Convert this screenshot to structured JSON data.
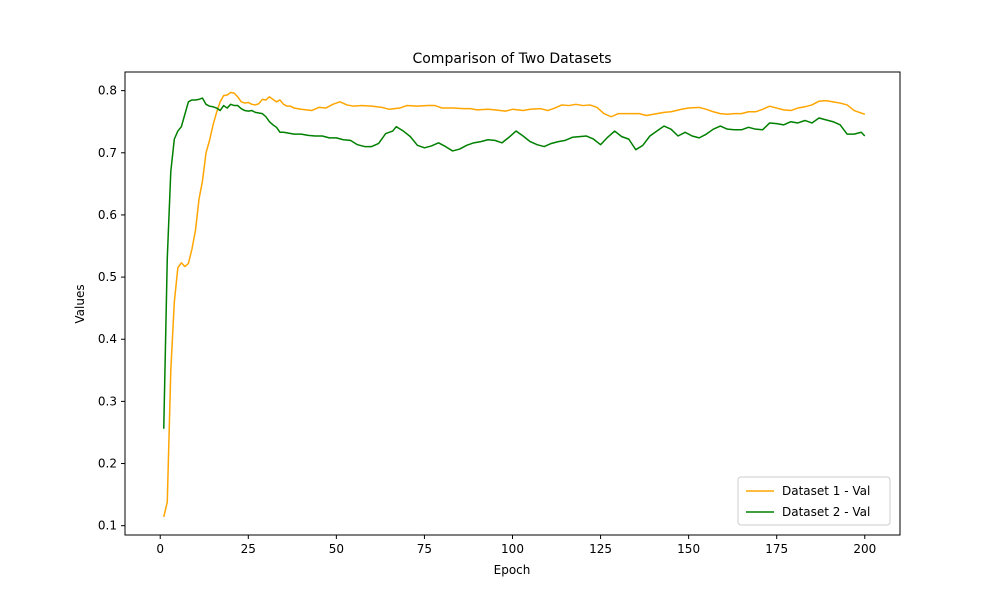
{
  "chart_data": {
    "type": "line",
    "title": "Comparison of Two Datasets",
    "xlabel": "Epoch",
    "ylabel": "Values",
    "xlim": [
      -10,
      210
    ],
    "ylim": [
      0.085,
      0.83
    ],
    "xticks": [
      0,
      25,
      50,
      75,
      100,
      125,
      150,
      175,
      200
    ],
    "yticks": [
      0.1,
      0.2,
      0.3,
      0.4,
      0.5,
      0.6,
      0.7,
      0.8
    ],
    "grid": false,
    "legend_position": "bottom-right",
    "series": [
      {
        "name": "Dataset 1 - Val",
        "color": "#ffa500",
        "points": [
          [
            1,
            0.114
          ],
          [
            2,
            0.138
          ],
          [
            3,
            0.35
          ],
          [
            4,
            0.46
          ],
          [
            5,
            0.515
          ],
          [
            6,
            0.523
          ],
          [
            7,
            0.517
          ],
          [
            8,
            0.522
          ],
          [
            9,
            0.545
          ],
          [
            10,
            0.575
          ],
          [
            11,
            0.625
          ],
          [
            12,
            0.655
          ],
          [
            13,
            0.7
          ],
          [
            14,
            0.72
          ],
          [
            15,
            0.745
          ],
          [
            16,
            0.765
          ],
          [
            17,
            0.782
          ],
          [
            18,
            0.792
          ],
          [
            19,
            0.793
          ],
          [
            20,
            0.797
          ],
          [
            21,
            0.796
          ],
          [
            22,
            0.79
          ],
          [
            23,
            0.782
          ],
          [
            24,
            0.78
          ],
          [
            25,
            0.781
          ],
          [
            26,
            0.778
          ],
          [
            27,
            0.777
          ],
          [
            28,
            0.779
          ],
          [
            29,
            0.786
          ],
          [
            30,
            0.785
          ],
          [
            31,
            0.79
          ],
          [
            32,
            0.786
          ],
          [
            33,
            0.782
          ],
          [
            34,
            0.785
          ],
          [
            35,
            0.778
          ],
          [
            36,
            0.775
          ],
          [
            37,
            0.775
          ],
          [
            38,
            0.772
          ],
          [
            39,
            0.771
          ],
          [
            40,
            0.77
          ],
          [
            43,
            0.768
          ],
          [
            45,
            0.773
          ],
          [
            47,
            0.772
          ],
          [
            49,
            0.778
          ],
          [
            50,
            0.78
          ],
          [
            51,
            0.782
          ],
          [
            53,
            0.777
          ],
          [
            55,
            0.775
          ],
          [
            57,
            0.776
          ],
          [
            60,
            0.775
          ],
          [
            63,
            0.773
          ],
          [
            65,
            0.77
          ],
          [
            68,
            0.772
          ],
          [
            70,
            0.776
          ],
          [
            73,
            0.775
          ],
          [
            76,
            0.776
          ],
          [
            78,
            0.776
          ],
          [
            80,
            0.772
          ],
          [
            83,
            0.772
          ],
          [
            86,
            0.771
          ],
          [
            88,
            0.771
          ],
          [
            90,
            0.769
          ],
          [
            93,
            0.77
          ],
          [
            95,
            0.769
          ],
          [
            98,
            0.767
          ],
          [
            100,
            0.77
          ],
          [
            103,
            0.768
          ],
          [
            105,
            0.77
          ],
          [
            108,
            0.771
          ],
          [
            110,
            0.768
          ],
          [
            112,
            0.772
          ],
          [
            114,
            0.777
          ],
          [
            116,
            0.776
          ],
          [
            118,
            0.778
          ],
          [
            120,
            0.776
          ],
          [
            122,
            0.777
          ],
          [
            124,
            0.773
          ],
          [
            126,
            0.763
          ],
          [
            128,
            0.758
          ],
          [
            130,
            0.763
          ],
          [
            133,
            0.763
          ],
          [
            136,
            0.763
          ],
          [
            138,
            0.76
          ],
          [
            140,
            0.762
          ],
          [
            143,
            0.765
          ],
          [
            145,
            0.766
          ],
          [
            148,
            0.77
          ],
          [
            150,
            0.772
          ],
          [
            153,
            0.773
          ],
          [
            155,
            0.77
          ],
          [
            157,
            0.766
          ],
          [
            159,
            0.763
          ],
          [
            161,
            0.762
          ],
          [
            163,
            0.763
          ],
          [
            165,
            0.763
          ],
          [
            167,
            0.766
          ],
          [
            169,
            0.766
          ],
          [
            171,
            0.77
          ],
          [
            173,
            0.775
          ],
          [
            175,
            0.772
          ],
          [
            177,
            0.769
          ],
          [
            179,
            0.768
          ],
          [
            181,
            0.772
          ],
          [
            183,
            0.774
          ],
          [
            185,
            0.777
          ],
          [
            187,
            0.783
          ],
          [
            189,
            0.784
          ],
          [
            191,
            0.782
          ],
          [
            193,
            0.78
          ],
          [
            195,
            0.777
          ],
          [
            197,
            0.768
          ],
          [
            199,
            0.764
          ],
          [
            200,
            0.762
          ]
        ]
      },
      {
        "name": "Dataset 2 - Val",
        "color": "#008000",
        "points": [
          [
            1,
            0.256
          ],
          [
            2,
            0.53
          ],
          [
            3,
            0.67
          ],
          [
            4,
            0.722
          ],
          [
            5,
            0.735
          ],
          [
            6,
            0.742
          ],
          [
            7,
            0.762
          ],
          [
            8,
            0.782
          ],
          [
            9,
            0.785
          ],
          [
            10,
            0.785
          ],
          [
            11,
            0.786
          ],
          [
            12,
            0.788
          ],
          [
            13,
            0.778
          ],
          [
            14,
            0.775
          ],
          [
            15,
            0.774
          ],
          [
            16,
            0.772
          ],
          [
            17,
            0.768
          ],
          [
            18,
            0.776
          ],
          [
            19,
            0.772
          ],
          [
            20,
            0.778
          ],
          [
            21,
            0.776
          ],
          [
            22,
            0.776
          ],
          [
            23,
            0.771
          ],
          [
            24,
            0.768
          ],
          [
            25,
            0.767
          ],
          [
            26,
            0.768
          ],
          [
            27,
            0.765
          ],
          [
            28,
            0.764
          ],
          [
            29,
            0.763
          ],
          [
            30,
            0.758
          ],
          [
            31,
            0.75
          ],
          [
            32,
            0.745
          ],
          [
            33,
            0.741
          ],
          [
            34,
            0.733
          ],
          [
            35,
            0.733
          ],
          [
            36,
            0.732
          ],
          [
            38,
            0.73
          ],
          [
            40,
            0.73
          ],
          [
            42,
            0.728
          ],
          [
            44,
            0.727
          ],
          [
            46,
            0.727
          ],
          [
            48,
            0.724
          ],
          [
            50,
            0.724
          ],
          [
            52,
            0.721
          ],
          [
            54,
            0.72
          ],
          [
            56,
            0.713
          ],
          [
            58,
            0.71
          ],
          [
            60,
            0.71
          ],
          [
            62,
            0.715
          ],
          [
            64,
            0.731
          ],
          [
            66,
            0.735
          ],
          [
            67,
            0.742
          ],
          [
            69,
            0.735
          ],
          [
            71,
            0.726
          ],
          [
            73,
            0.712
          ],
          [
            75,
            0.708
          ],
          [
            77,
            0.711
          ],
          [
            79,
            0.716
          ],
          [
            81,
            0.71
          ],
          [
            83,
            0.703
          ],
          [
            85,
            0.706
          ],
          [
            87,
            0.712
          ],
          [
            89,
            0.716
          ],
          [
            91,
            0.718
          ],
          [
            93,
            0.721
          ],
          [
            95,
            0.72
          ],
          [
            97,
            0.716
          ],
          [
            99,
            0.725
          ],
          [
            101,
            0.735
          ],
          [
            103,
            0.727
          ],
          [
            105,
            0.718
          ],
          [
            107,
            0.713
          ],
          [
            109,
            0.71
          ],
          [
            111,
            0.715
          ],
          [
            113,
            0.718
          ],
          [
            115,
            0.72
          ],
          [
            117,
            0.725
          ],
          [
            119,
            0.726
          ],
          [
            121,
            0.727
          ],
          [
            123,
            0.722
          ],
          [
            125,
            0.713
          ],
          [
            127,
            0.725
          ],
          [
            129,
            0.735
          ],
          [
            131,
            0.726
          ],
          [
            133,
            0.722
          ],
          [
            135,
            0.705
          ],
          [
            137,
            0.712
          ],
          [
            139,
            0.727
          ],
          [
            141,
            0.735
          ],
          [
            143,
            0.743
          ],
          [
            145,
            0.738
          ],
          [
            147,
            0.727
          ],
          [
            149,
            0.733
          ],
          [
            151,
            0.727
          ],
          [
            153,
            0.724
          ],
          [
            155,
            0.73
          ],
          [
            157,
            0.738
          ],
          [
            159,
            0.743
          ],
          [
            161,
            0.738
          ],
          [
            163,
            0.737
          ],
          [
            165,
            0.737
          ],
          [
            167,
            0.741
          ],
          [
            169,
            0.738
          ],
          [
            171,
            0.737
          ],
          [
            173,
            0.748
          ],
          [
            175,
            0.747
          ],
          [
            177,
            0.745
          ],
          [
            179,
            0.75
          ],
          [
            181,
            0.748
          ],
          [
            183,
            0.752
          ],
          [
            185,
            0.748
          ],
          [
            187,
            0.756
          ],
          [
            189,
            0.753
          ],
          [
            191,
            0.75
          ],
          [
            193,
            0.745
          ],
          [
            195,
            0.73
          ],
          [
            197,
            0.73
          ],
          [
            199,
            0.733
          ],
          [
            200,
            0.727
          ]
        ]
      }
    ]
  }
}
